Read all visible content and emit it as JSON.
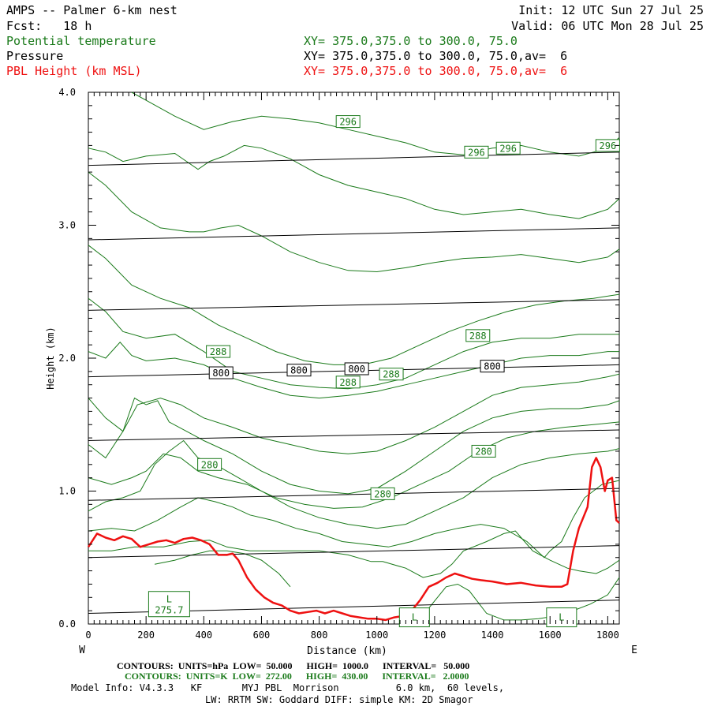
{
  "header": {
    "title": "AMPS -- Palmer 6-km nest",
    "fcst": "Fcst:   18 h",
    "init": "Init: 12 UTC Sun 27 Jul 25",
    "valid": "Valid: 06 UTC Mon 28 Jul 25",
    "field1": "Potential temperature",
    "field2": "Pressure",
    "field3": "PBL Height (km MSL)",
    "xy1": "XY= 375.0,375.0 to 300.0, 75.0",
    "xy2": "XY= 375.0,375.0 to 300.0, 75.0,av=  6",
    "xy3": "XY= 375.0,375.0 to 300.0, 75.0,av=  6"
  },
  "footer": {
    "line1": "CONTOURS:  UNITS=hPa  LOW=  50.000      HIGH=  1000.0      INTERVAL=   50.000",
    "line2": "CONTOURS:  UNITS=K  LOW=  272.00      HIGH=  430.00      INTERVAL=   2.0000",
    "line3": "Model Info: V4.3.3   KF       MYJ PBL  Morrison          6.0 km,  60 levels,",
    "line4": "LW: RRTM SW: Goddard DIFF: simple KM: 2D Smagor"
  },
  "colors": {
    "theta": "#1a7a1a",
    "pressure": "#000000",
    "pbl": "#ee1111"
  },
  "chart_data": {
    "type": "line",
    "xlabel": "Distance (km)",
    "ylabel": "Height (km)",
    "xlim": [
      0,
      1840
    ],
    "ylim": [
      0,
      4.0
    ],
    "xticks": [
      0,
      200,
      400,
      600,
      800,
      1000,
      1200,
      1400,
      1600,
      1800
    ],
    "yticks": [
      0.0,
      1.0,
      2.0,
      3.0,
      4.0
    ],
    "xtick_labels": [
      "0",
      "200",
      "400",
      "600",
      "800",
      "1000",
      "1200",
      "1400",
      "1600",
      "1800"
    ],
    "ytick_labels": [
      "0.0",
      "1.0",
      "2.0",
      "3.0",
      "4.0"
    ],
    "left_end_label": "W",
    "right_end_label": "E",
    "pbl_height": {
      "x": [
        0,
        30,
        60,
        90,
        120,
        150,
        180,
        210,
        240,
        270,
        300,
        330,
        360,
        390,
        420,
        450,
        480,
        500,
        520,
        550,
        580,
        610,
        640,
        670,
        700,
        730,
        760,
        790,
        820,
        850,
        880,
        910,
        940,
        970,
        1000,
        1030,
        1060,
        1090,
        1120,
        1150,
        1180,
        1210,
        1240,
        1270,
        1300,
        1330,
        1360,
        1400,
        1450,
        1500,
        1550,
        1600,
        1640,
        1660,
        1680,
        1700,
        1715,
        1730,
        1745,
        1760,
        1775,
        1790,
        1800,
        1815,
        1830,
        1840
      ],
      "y": [
        0.58,
        0.68,
        0.65,
        0.63,
        0.66,
        0.64,
        0.58,
        0.6,
        0.62,
        0.63,
        0.61,
        0.64,
        0.65,
        0.63,
        0.6,
        0.52,
        0.52,
        0.53,
        0.48,
        0.35,
        0.26,
        0.2,
        0.16,
        0.14,
        0.1,
        0.08,
        0.09,
        0.1,
        0.08,
        0.1,
        0.08,
        0.06,
        0.05,
        0.04,
        0.04,
        0.03,
        0.05,
        0.06,
        0.1,
        0.18,
        0.28,
        0.31,
        0.35,
        0.38,
        0.36,
        0.34,
        0.33,
        0.32,
        0.3,
        0.31,
        0.29,
        0.28,
        0.28,
        0.3,
        0.55,
        0.72,
        0.8,
        0.88,
        1.18,
        1.25,
        1.18,
        1.0,
        1.08,
        1.1,
        0.78,
        0.76
      ]
    },
    "pressure_levels": [
      {
        "label": "",
        "y0": 0.08,
        "y1": 0.18
      },
      {
        "label": "",
        "y0": 0.5,
        "y1": 0.59
      },
      {
        "label": "",
        "y0": 0.93,
        "y1": 1.02
      },
      {
        "label": "",
        "y0": 1.38,
        "y1": 1.46
      },
      {
        "label": "800",
        "y0": 1.86,
        "y1": 1.95
      },
      {
        "label": "",
        "y0": 2.36,
        "y1": 2.44
      },
      {
        "label": "",
        "y0": 2.89,
        "y1": 2.98
      },
      {
        "label": "",
        "y0": 3.45,
        "y1": 3.55
      }
    ],
    "pressure_labels": [
      {
        "text": "800",
        "x": 460,
        "y": 1.89
      },
      {
        "text": "800",
        "x": 730,
        "y": 1.91
      },
      {
        "text": "800",
        "x": 930,
        "y": 1.92
      },
      {
        "text": "800",
        "x": 1400,
        "y": 1.94
      }
    ],
    "theta_labels": [
      {
        "text": "296",
        "x": 900,
        "y": 3.78
      },
      {
        "text": "296",
        "x": 1345,
        "y": 3.55
      },
      {
        "text": "296",
        "x": 1455,
        "y": 3.58
      },
      {
        "text": "296",
        "x": 1800,
        "y": 3.6
      },
      {
        "text": "288",
        "x": 450,
        "y": 2.05
      },
      {
        "text": "288",
        "x": 1350,
        "y": 2.17
      },
      {
        "text": "288",
        "x": 900,
        "y": 1.82
      },
      {
        "text": "288",
        "x": 1050,
        "y": 1.88
      },
      {
        "text": "280",
        "x": 420,
        "y": 1.2
      },
      {
        "text": "280",
        "x": 1370,
        "y": 1.3
      },
      {
        "text": "280",
        "x": 1020,
        "y": 0.98
      }
    ],
    "low_markers": [
      {
        "text": "L",
        "value": "275.7",
        "x": 280,
        "y": 0.15
      },
      {
        "text": "L",
        "value": "",
        "x": 1130,
        "y": 0.05
      },
      {
        "text": "L",
        "value": "",
        "x": 1640,
        "y": 0.05
      }
    ],
    "theta_contours": [
      {
        "x": [
          150,
          300,
          400,
          500,
          600,
          700,
          800,
          900,
          1000,
          1100,
          1200,
          1300,
          1400,
          1500,
          1600,
          1700,
          1800,
          1840
        ],
        "y": [
          4.0,
          3.82,
          3.72,
          3.78,
          3.82,
          3.8,
          3.77,
          3.72,
          3.67,
          3.62,
          3.55,
          3.53,
          3.58,
          3.6,
          3.55,
          3.52,
          3.58,
          3.66
        ]
      },
      {
        "x": [
          0,
          60,
          120,
          200,
          300,
          380,
          420,
          470,
          540,
          600,
          700,
          800,
          900,
          1000,
          1100,
          1200,
          1300,
          1400,
          1500,
          1600,
          1700,
          1800,
          1840
        ],
        "y": [
          3.58,
          3.55,
          3.48,
          3.52,
          3.54,
          3.42,
          3.48,
          3.52,
          3.6,
          3.58,
          3.5,
          3.38,
          3.3,
          3.25,
          3.2,
          3.12,
          3.08,
          3.1,
          3.12,
          3.08,
          3.05,
          3.12,
          3.2
        ]
      },
      {
        "x": [
          0,
          60,
          150,
          250,
          350,
          400,
          460,
          520,
          600,
          700,
          800,
          900,
          1000,
          1100,
          1200,
          1300,
          1400,
          1500,
          1600,
          1700,
          1800,
          1840
        ],
        "y": [
          3.4,
          3.3,
          3.1,
          2.98,
          2.95,
          2.95,
          2.98,
          3.0,
          2.92,
          2.8,
          2.72,
          2.66,
          2.65,
          2.68,
          2.72,
          2.75,
          2.76,
          2.78,
          2.75,
          2.72,
          2.76,
          2.82
        ]
      },
      {
        "x": [
          0,
          60,
          150,
          250,
          350,
          450,
          550,
          650,
          750,
          850,
          950,
          1050,
          1150,
          1250,
          1350,
          1450,
          1550,
          1650,
          1750,
          1840
        ],
        "y": [
          2.85,
          2.75,
          2.55,
          2.45,
          2.38,
          2.25,
          2.15,
          2.05,
          1.98,
          1.95,
          1.95,
          2.0,
          2.1,
          2.2,
          2.28,
          2.35,
          2.4,
          2.43,
          2.45,
          2.48
        ]
      },
      {
        "x": [
          0,
          60,
          120,
          200,
          300,
          400,
          500,
          600,
          700,
          800,
          900,
          1000,
          1100,
          1200,
          1300,
          1400,
          1500,
          1600,
          1700,
          1800,
          1840
        ],
        "y": [
          2.45,
          2.35,
          2.2,
          2.15,
          2.18,
          2.05,
          1.9,
          1.85,
          1.8,
          1.78,
          1.77,
          1.8,
          1.85,
          1.95,
          2.05,
          2.12,
          2.15,
          2.15,
          2.18,
          2.18,
          2.18
        ]
      },
      {
        "x": [
          0,
          60,
          110,
          150,
          200,
          300,
          400,
          500,
          600,
          700,
          800,
          900,
          1000,
          1100,
          1200,
          1300,
          1400,
          1500,
          1600,
          1700,
          1800,
          1840
        ],
        "y": [
          2.05,
          2.0,
          2.12,
          2.02,
          1.98,
          2.0,
          1.95,
          1.85,
          1.78,
          1.72,
          1.7,
          1.72,
          1.75,
          1.8,
          1.85,
          1.9,
          1.95,
          2.0,
          2.02,
          2.02,
          2.05,
          2.05
        ]
      },
      {
        "x": [
          0,
          60,
          120,
          170,
          250,
          320,
          400,
          500,
          600,
          700,
          800,
          900,
          1000,
          1100,
          1200,
          1300,
          1400,
          1500,
          1600,
          1700,
          1800,
          1840
        ],
        "y": [
          1.7,
          1.55,
          1.45,
          1.65,
          1.7,
          1.65,
          1.55,
          1.48,
          1.4,
          1.35,
          1.3,
          1.28,
          1.3,
          1.38,
          1.48,
          1.6,
          1.72,
          1.78,
          1.8,
          1.82,
          1.86,
          1.88
        ]
      },
      {
        "x": [
          0,
          60,
          120,
          160,
          200,
          240,
          280,
          340,
          400,
          500,
          600,
          700,
          800,
          900,
          1000,
          1100,
          1200,
          1300,
          1400,
          1500,
          1600,
          1700,
          1800,
          1840
        ],
        "y": [
          1.35,
          1.25,
          1.45,
          1.7,
          1.65,
          1.68,
          1.52,
          1.45,
          1.38,
          1.28,
          1.15,
          1.05,
          1.0,
          0.98,
          1.02,
          1.15,
          1.3,
          1.45,
          1.55,
          1.6,
          1.62,
          1.62,
          1.65,
          1.68
        ]
      },
      {
        "x": [
          0,
          80,
          150,
          200,
          260,
          320,
          380,
          450,
          550,
          650,
          750,
          850,
          950,
          1050,
          1150,
          1250,
          1350,
          1450,
          1550,
          1650,
          1750,
          1840
        ],
        "y": [
          1.1,
          1.05,
          1.1,
          1.15,
          1.28,
          1.25,
          1.15,
          1.1,
          1.05,
          0.95,
          0.9,
          0.87,
          0.88,
          0.95,
          1.05,
          1.15,
          1.3,
          1.4,
          1.45,
          1.48,
          1.5,
          1.52
        ]
      },
      {
        "x": [
          0,
          60,
          120,
          180,
          230,
          280,
          330,
          380,
          440,
          520,
          600,
          700,
          800,
          900,
          1000,
          1100,
          1200,
          1300,
          1400,
          1500,
          1600,
          1700,
          1800,
          1840
        ],
        "y": [
          0.85,
          0.92,
          0.95,
          1.0,
          1.2,
          1.3,
          1.38,
          1.25,
          1.2,
          1.1,
          1.0,
          0.88,
          0.8,
          0.75,
          0.72,
          0.75,
          0.85,
          0.95,
          1.1,
          1.2,
          1.25,
          1.28,
          1.3,
          1.32
        ]
      },
      {
        "x": [
          0,
          80,
          160,
          240,
          320,
          380,
          440,
          500,
          560,
          640,
          720,
          800,
          880,
          960,
          1040,
          1120,
          1200,
          1280,
          1360,
          1440,
          1520,
          1580,
          1600,
          1640,
          1680,
          1720,
          1780,
          1840
        ],
        "y": [
          0.7,
          0.72,
          0.7,
          0.78,
          0.88,
          0.95,
          0.92,
          0.88,
          0.82,
          0.78,
          0.72,
          0.68,
          0.62,
          0.6,
          0.58,
          0.62,
          0.68,
          0.72,
          0.75,
          0.72,
          0.62,
          0.5,
          0.55,
          0.62,
          0.8,
          0.95,
          1.05,
          1.08
        ]
      },
      {
        "x": [
          0,
          80,
          160,
          260,
          350,
          420,
          480,
          560,
          640,
          720,
          800,
          900,
          980,
          1020,
          1100,
          1160,
          1220,
          1260,
          1300,
          1380,
          1440,
          1480,
          1500,
          1540,
          1600,
          1660,
          1700,
          1760,
          1800,
          1840
        ],
        "y": [
          0.55,
          0.55,
          0.58,
          0.58,
          0.62,
          0.63,
          0.58,
          0.55,
          0.55,
          0.55,
          0.55,
          0.52,
          0.47,
          0.47,
          0.42,
          0.35,
          0.38,
          0.45,
          0.55,
          0.62,
          0.68,
          0.7,
          0.65,
          0.55,
          0.48,
          0.42,
          0.4,
          0.38,
          0.42,
          0.48
        ]
      },
      {
        "x": [
          230,
          300,
          360,
          420,
          480,
          540,
          600,
          660,
          700
        ],
        "y": [
          0.45,
          0.48,
          0.52,
          0.55,
          0.55,
          0.53,
          0.48,
          0.38,
          0.28
        ]
      },
      {
        "x": [
          1080,
          1180,
          1240,
          1280,
          1320,
          1380,
          1440,
          1500,
          1560,
          1620,
          1680,
          1740,
          1800,
          1840
        ],
        "y": [
          0.02,
          0.12,
          0.28,
          0.3,
          0.25,
          0.08,
          0.03,
          0.03,
          0.04,
          0.06,
          0.1,
          0.15,
          0.22,
          0.35
        ]
      }
    ]
  }
}
